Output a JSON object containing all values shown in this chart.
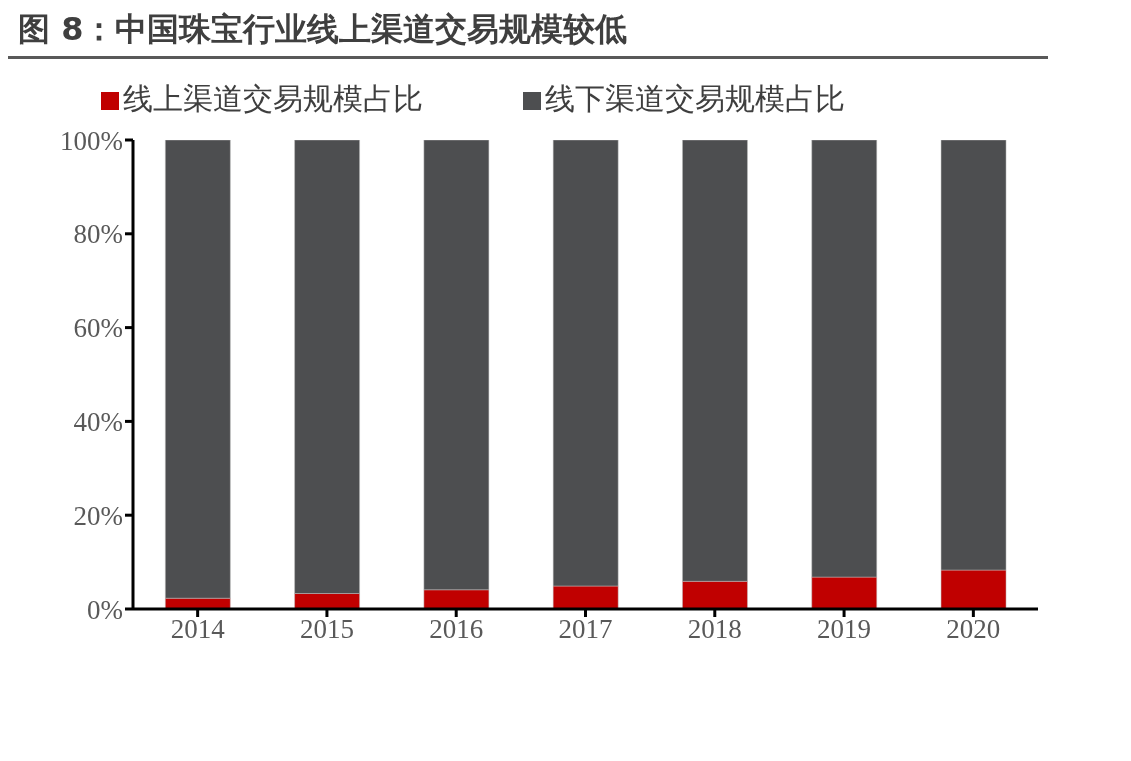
{
  "chart_data": {
    "type": "bar",
    "title": "图 8：中国珠宝行业线上渠道交易规模较低",
    "categories": [
      "2014",
      "2015",
      "2016",
      "2017",
      "2018",
      "2019",
      "2020"
    ],
    "stacked": true,
    "series": [
      {
        "name": "线上渠道交易规模占比",
        "color": "#c00000",
        "values": [
          2.3,
          3.3,
          4.1,
          4.9,
          5.9,
          6.8,
          8.3
        ]
      },
      {
        "name": "线下渠道交易规模占比",
        "color": "#4d4e50",
        "values": [
          97.7,
          96.7,
          95.9,
          95.1,
          94.1,
          93.2,
          91.7
        ]
      }
    ],
    "ylim": [
      0,
      100
    ],
    "yticks": [
      {
        "value": 0,
        "label": "0%"
      },
      {
        "value": 20,
        "label": "20%"
      },
      {
        "value": 40,
        "label": "40%"
      },
      {
        "value": 60,
        "label": "60%"
      },
      {
        "value": 80,
        "label": "80%"
      },
      {
        "value": 100,
        "label": "100%"
      }
    ],
    "grid": false,
    "legend": "top"
  }
}
